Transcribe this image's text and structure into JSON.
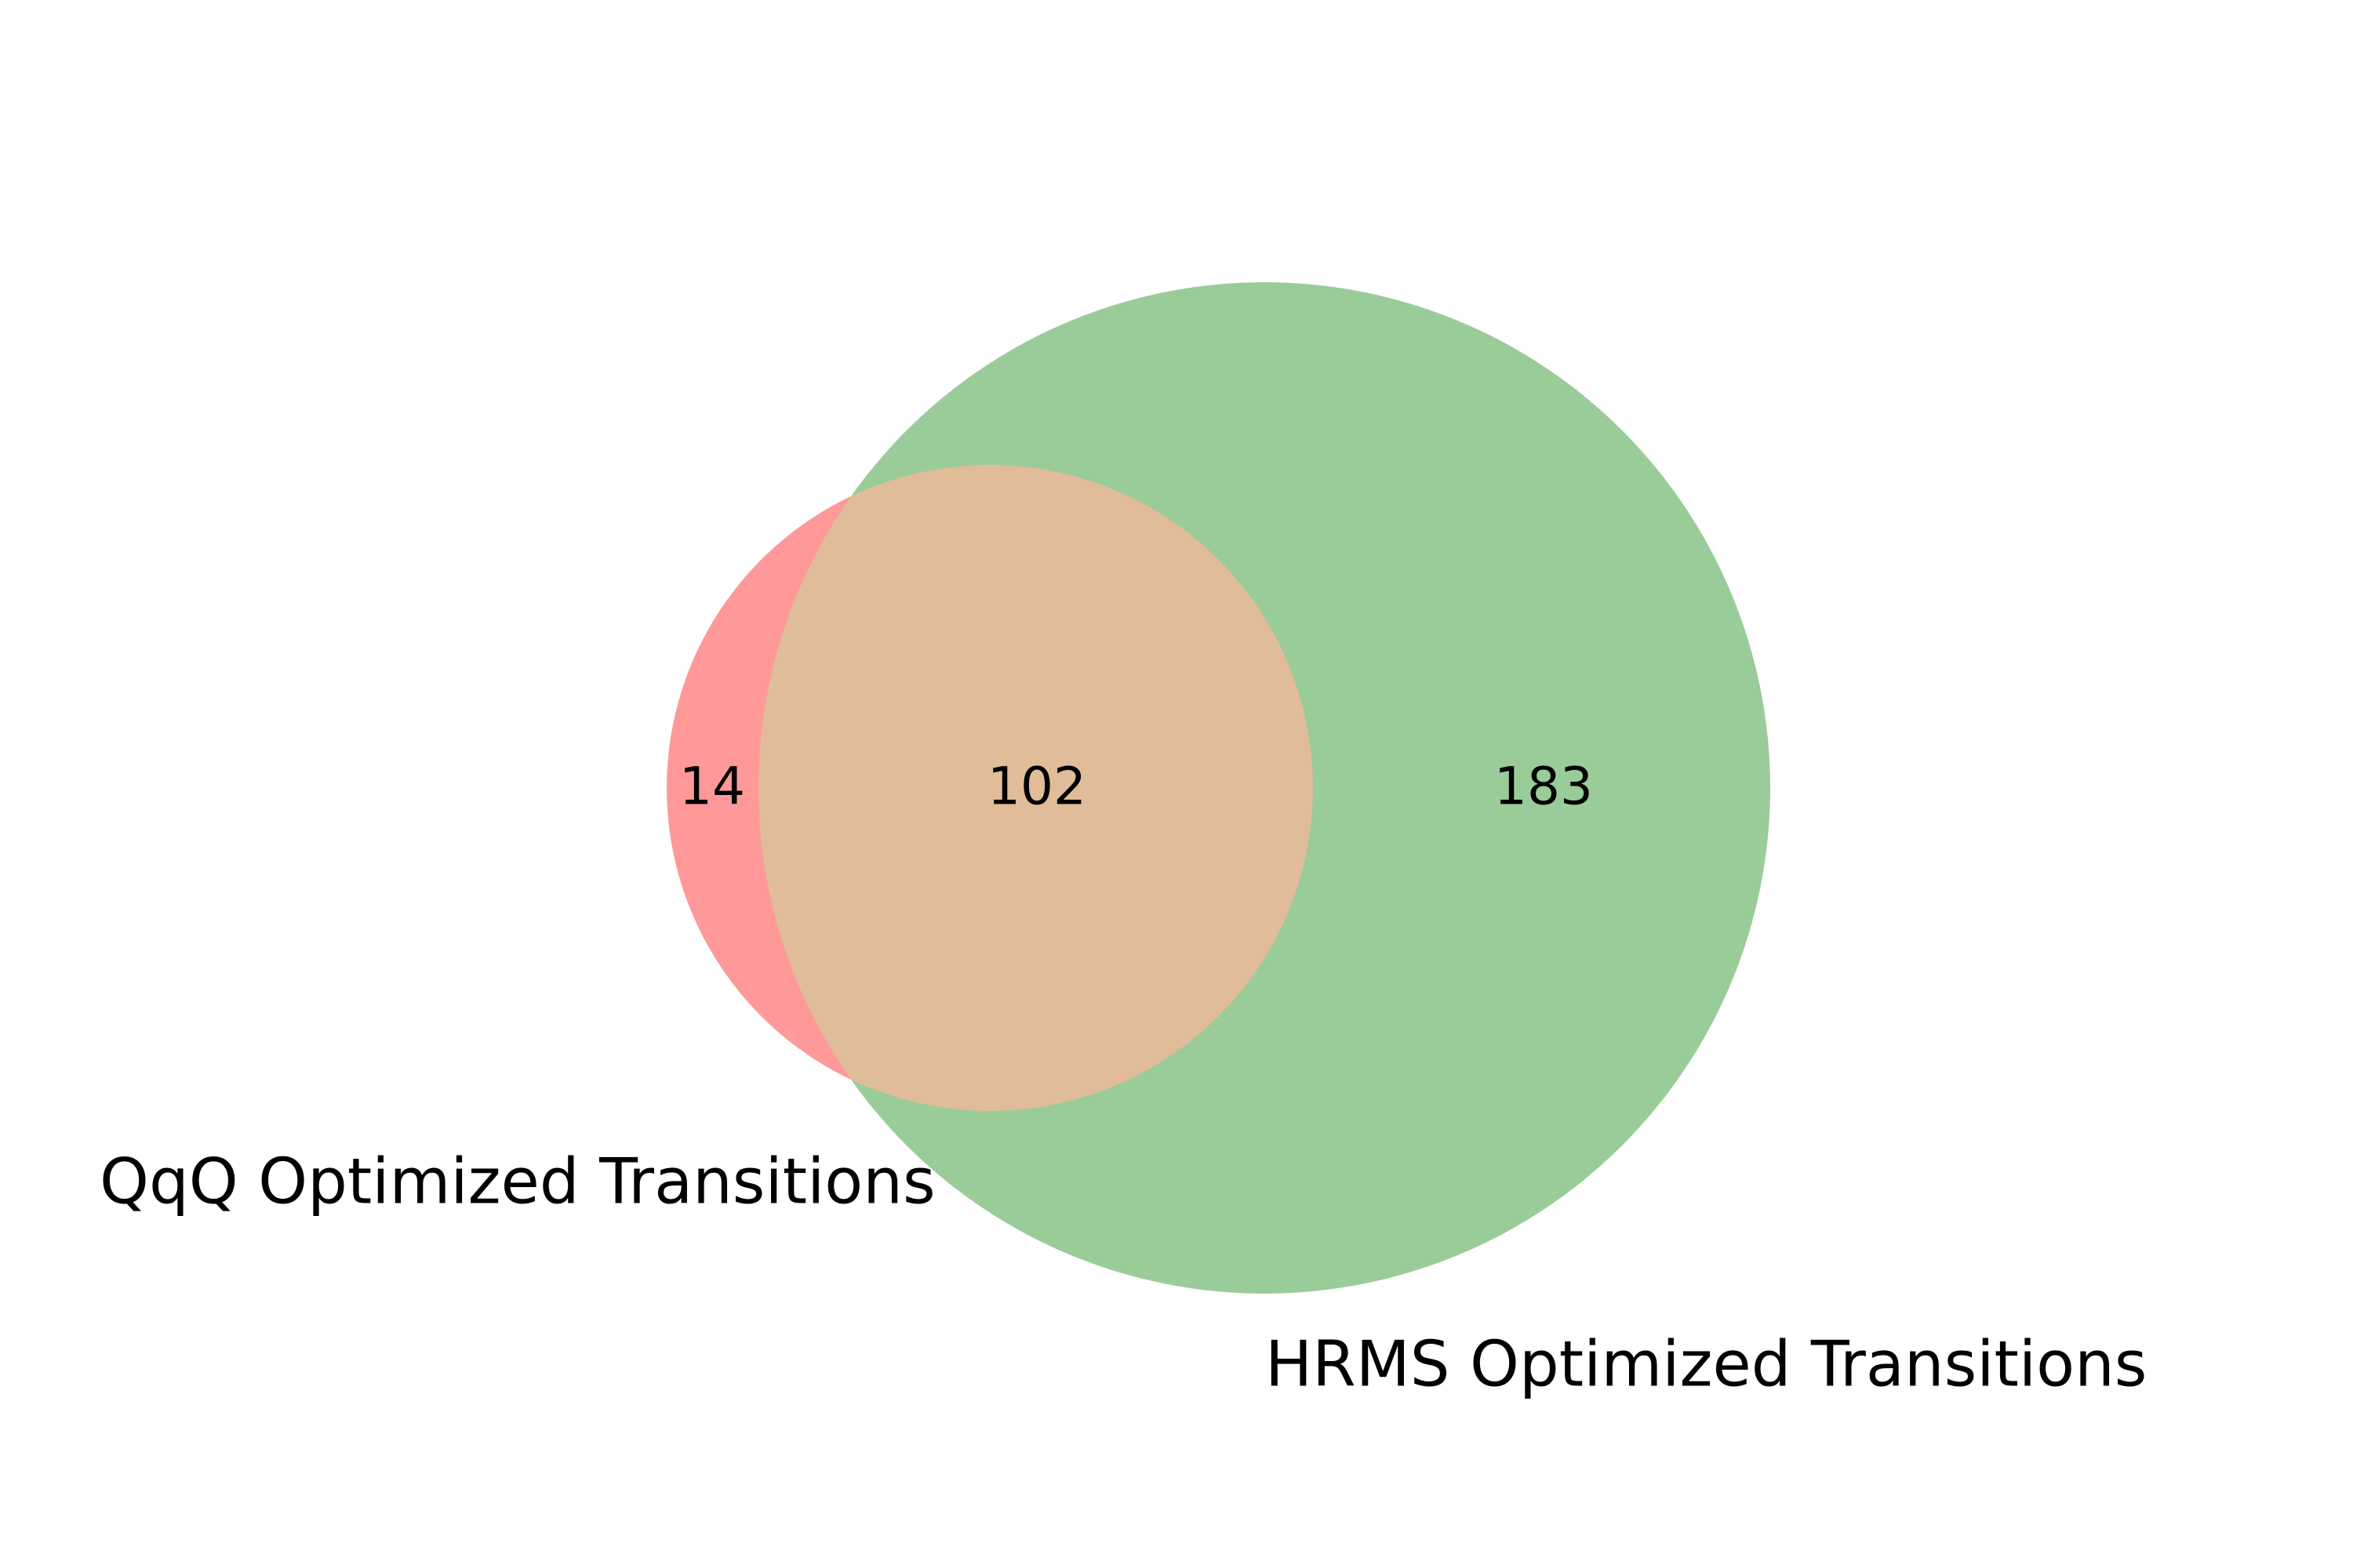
{
  "venn": {
    "sets": [
      {
        "label": "QqQ Optimized Transitions",
        "color": "#ff9999"
      },
      {
        "label": "HRMS Optimized Transitions",
        "color": "#99cc99"
      }
    ],
    "overlap_color": "#e0bc99",
    "counts": {
      "only_a": "14",
      "a_and_b": "102",
      "only_b": "183"
    }
  }
}
